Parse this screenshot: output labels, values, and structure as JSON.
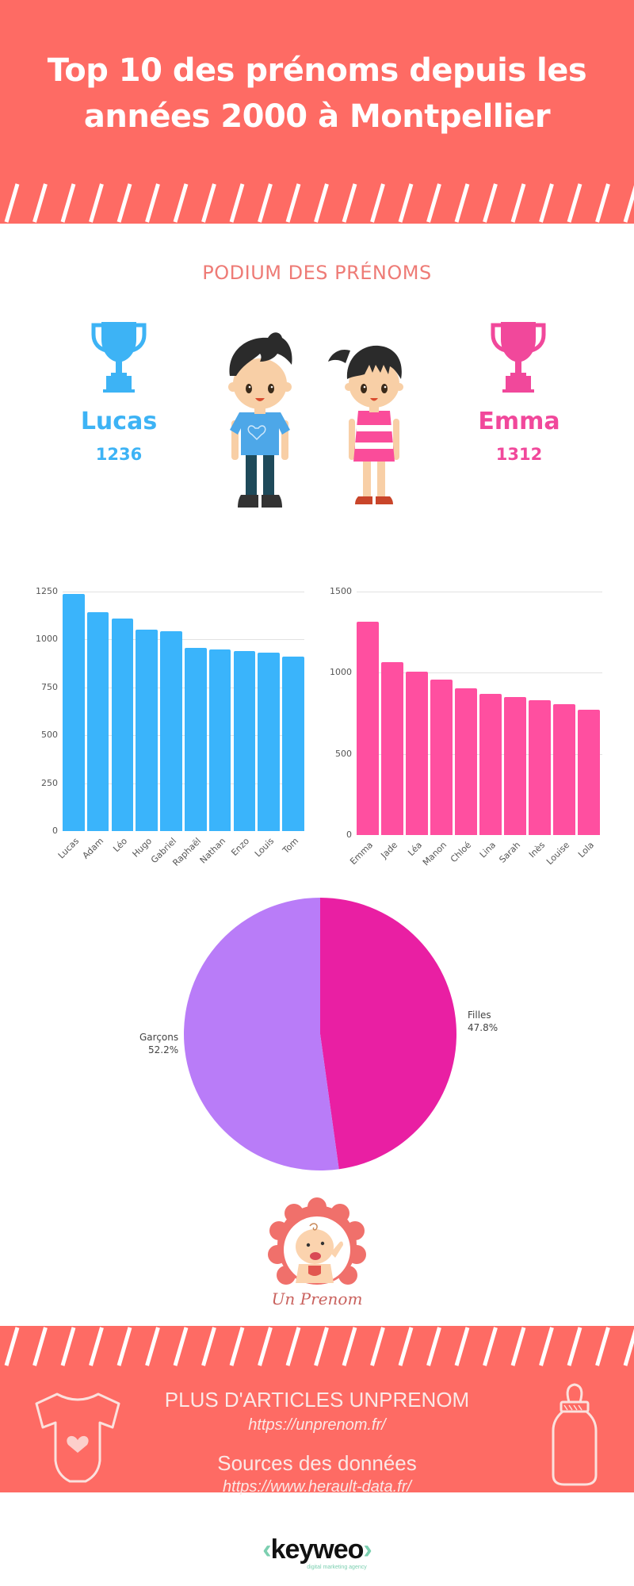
{
  "header": {
    "title_line1": "Top 10 des prénoms depuis les",
    "title_line2": "années 2000 à Montpellier",
    "bg_color": "#fe6b64"
  },
  "podium": {
    "title": "PODIUM DES PRÉNOMS",
    "boy": {
      "name": "Lucas",
      "count": "1236",
      "color": "#3db3f5",
      "icon": "trophy-icon"
    },
    "girl": {
      "name": "Emma",
      "count": "1312",
      "color": "#f1489b",
      "icon": "trophy-icon"
    }
  },
  "chart_data": [
    {
      "type": "bar",
      "title": "",
      "xlabel": "",
      "ylabel": "",
      "categories": [
        "Lucas",
        "Adam",
        "Léo",
        "Hugo",
        "Gabriel",
        "Raphaël",
        "Nathan",
        "Enzo",
        "Louis",
        "Tom"
      ],
      "values": [
        1236,
        1143,
        1110,
        1052,
        1041,
        957,
        948,
        939,
        933,
        909
      ],
      "ylim": [
        0,
        1250
      ],
      "yticks": [
        "0",
        "250",
        "500",
        "750",
        "1000",
        "1250"
      ],
      "grid": true,
      "color": "#3ab4fb"
    },
    {
      "type": "bar",
      "title": "",
      "xlabel": "",
      "ylabel": "",
      "categories": [
        "Emma",
        "Jade",
        "Léa",
        "Manon",
        "Chloé",
        "Lina",
        "Sarah",
        "Inès",
        "Louise",
        "Lola"
      ],
      "values": [
        1312,
        1064,
        1007,
        960,
        906,
        869,
        852,
        830,
        806,
        772
      ],
      "ylim": [
        0,
        1500
      ],
      "yticks": [
        "0",
        "500",
        "1000",
        "1500"
      ],
      "grid": true,
      "color": "#ff4fa0"
    },
    {
      "type": "pie",
      "title": "",
      "labels": [
        "Filles",
        "Garçons"
      ],
      "values": [
        47.8,
        52.2
      ],
      "value_labels": [
        "47.8%",
        "52.2%"
      ],
      "colors": [
        "#e91fa3",
        "#b97cf8"
      ],
      "legend": "none"
    }
  ],
  "pie": {
    "filles_label": "Filles",
    "filles_pct": "47.8%",
    "garcons_label": "Garçons",
    "garcons_pct": "52.2%"
  },
  "logo": {
    "name": "Un Prenom"
  },
  "footer": {
    "articles_heading": "PLUS D'ARTICLES UNPRENOM",
    "articles_link": "https://unprenom.fr/",
    "sources_heading": "Sources des données",
    "sources_link": "https://www.herault-data.fr/",
    "left_icon": "baby-bodysuit-icon",
    "right_icon": "baby-bottle-icon"
  },
  "brand": {
    "name": "keyweo",
    "tagline": "digital marketing agency"
  }
}
